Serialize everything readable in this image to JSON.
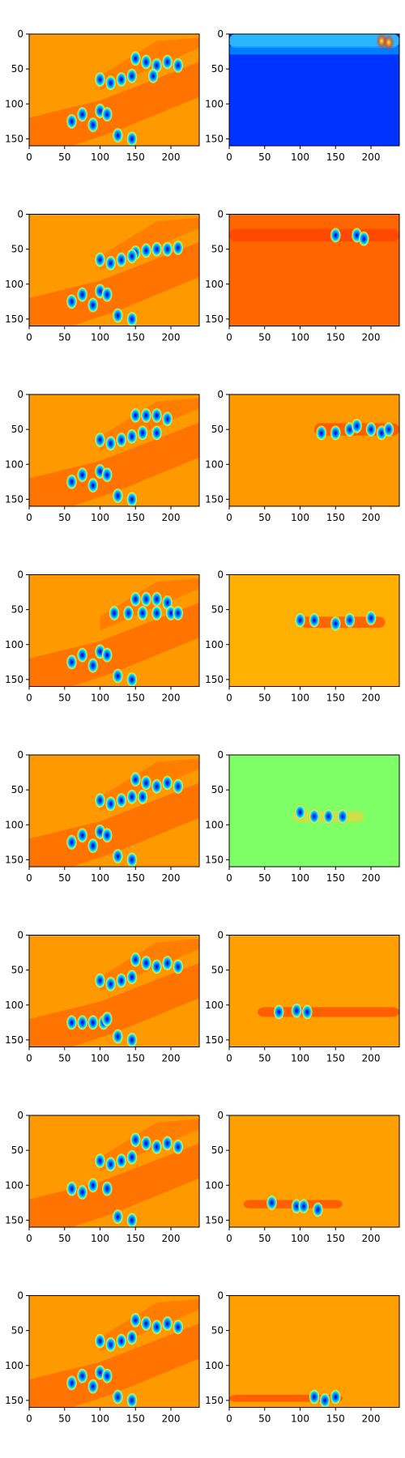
{
  "chart_data": {
    "type": "heatmap",
    "layout": {
      "rows": 8,
      "columns": 2
    },
    "colormap": "jet",
    "grid": false,
    "axes": {
      "xlim": [
        0,
        240
      ],
      "ylim": [
        160,
        0
      ],
      "xticks": [
        0,
        50,
        100,
        150,
        200
      ],
      "yticks": [
        0,
        50,
        100
      ],
      "xtick_labels": [
        "0",
        "50",
        "100",
        "150",
        "200"
      ],
      "ytick_labels": [
        "0",
        "50",
        "100",
        "150"
      ]
    },
    "left_panels": [
      {
        "row": 1,
        "background": "#ff9900",
        "blobs": [
          [
            150,
            35
          ],
          [
            165,
            40
          ],
          [
            180,
            45
          ],
          [
            195,
            40
          ],
          [
            210,
            45
          ],
          [
            175,
            60
          ],
          [
            145,
            60
          ],
          [
            130,
            65
          ],
          [
            115,
            70
          ],
          [
            100,
            65
          ],
          [
            60,
            125
          ],
          [
            75,
            115
          ],
          [
            90,
            130
          ],
          [
            100,
            110
          ],
          [
            110,
            115
          ],
          [
            125,
            145
          ],
          [
            145,
            150
          ]
        ]
      },
      {
        "row": 2,
        "background": "#ff9900",
        "blobs": [
          [
            150,
            55
          ],
          [
            165,
            52
          ],
          [
            180,
            50
          ],
          [
            195,
            50
          ],
          [
            210,
            48
          ],
          [
            145,
            60
          ],
          [
            130,
            65
          ],
          [
            115,
            70
          ],
          [
            100,
            65
          ],
          [
            60,
            125
          ],
          [
            75,
            115
          ],
          [
            90,
            130
          ],
          [
            100,
            110
          ],
          [
            110,
            115
          ],
          [
            125,
            145
          ],
          [
            145,
            150
          ]
        ]
      },
      {
        "row": 3,
        "background": "#ff9900",
        "blobs": [
          [
            150,
            30
          ],
          [
            165,
            30
          ],
          [
            180,
            30
          ],
          [
            195,
            35
          ],
          [
            145,
            60
          ],
          [
            130,
            65
          ],
          [
            115,
            70
          ],
          [
            100,
            65
          ],
          [
            160,
            55
          ],
          [
            180,
            55
          ],
          [
            60,
            125
          ],
          [
            75,
            115
          ],
          [
            90,
            130
          ],
          [
            100,
            110
          ],
          [
            110,
            115
          ],
          [
            125,
            145
          ],
          [
            145,
            150
          ]
        ]
      },
      {
        "row": 4,
        "background": "#ff9900",
        "blobs": [
          [
            150,
            35
          ],
          [
            165,
            35
          ],
          [
            180,
            35
          ],
          [
            195,
            40
          ],
          [
            120,
            55
          ],
          [
            140,
            55
          ],
          [
            160,
            55
          ],
          [
            180,
            55
          ],
          [
            200,
            55
          ],
          [
            210,
            55
          ],
          [
            60,
            125
          ],
          [
            75,
            115
          ],
          [
            90,
            130
          ],
          [
            100,
            110
          ],
          [
            110,
            115
          ],
          [
            125,
            145
          ],
          [
            145,
            150
          ]
        ]
      },
      {
        "row": 5,
        "background": "#ff9900",
        "blobs": [
          [
            150,
            35
          ],
          [
            165,
            40
          ],
          [
            180,
            45
          ],
          [
            195,
            40
          ],
          [
            210,
            45
          ],
          [
            145,
            60
          ],
          [
            130,
            65
          ],
          [
            115,
            70
          ],
          [
            100,
            65
          ],
          [
            160,
            60
          ],
          [
            60,
            125
          ],
          [
            75,
            115
          ],
          [
            90,
            130
          ],
          [
            100,
            110
          ],
          [
            110,
            115
          ],
          [
            125,
            145
          ],
          [
            145,
            150
          ]
        ]
      },
      {
        "row": 6,
        "background": "#ff9900",
        "blobs": [
          [
            150,
            35
          ],
          [
            165,
            40
          ],
          [
            180,
            45
          ],
          [
            195,
            40
          ],
          [
            210,
            45
          ],
          [
            145,
            60
          ],
          [
            130,
            65
          ],
          [
            115,
            70
          ],
          [
            100,
            65
          ],
          [
            60,
            125
          ],
          [
            75,
            125
          ],
          [
            90,
            125
          ],
          [
            105,
            125
          ],
          [
            110,
            120
          ],
          [
            125,
            145
          ],
          [
            145,
            150
          ]
        ]
      },
      {
        "row": 7,
        "background": "#ff9900",
        "blobs": [
          [
            150,
            35
          ],
          [
            165,
            40
          ],
          [
            180,
            45
          ],
          [
            195,
            40
          ],
          [
            210,
            45
          ],
          [
            145,
            60
          ],
          [
            130,
            65
          ],
          [
            115,
            70
          ],
          [
            100,
            65
          ],
          [
            60,
            105
          ],
          [
            75,
            110
          ],
          [
            90,
            100
          ],
          [
            110,
            105
          ],
          [
            125,
            145
          ],
          [
            145,
            150
          ]
        ]
      },
      {
        "row": 8,
        "background": "#ff9900",
        "blobs": [
          [
            150,
            35
          ],
          [
            165,
            40
          ],
          [
            180,
            45
          ],
          [
            195,
            40
          ],
          [
            210,
            45
          ],
          [
            145,
            60
          ],
          [
            130,
            65
          ],
          [
            115,
            70
          ],
          [
            100,
            65
          ],
          [
            60,
            125
          ],
          [
            75,
            115
          ],
          [
            90,
            130
          ],
          [
            100,
            110
          ],
          [
            110,
            115
          ],
          [
            125,
            145
          ],
          [
            145,
            150
          ]
        ]
      }
    ],
    "right_panels": [
      {
        "row": 1,
        "background": "#0033ff",
        "band": {
          "y": 10,
          "height": 20,
          "x0": 0,
          "x1": 240
        },
        "blobs": [
          [
            215,
            10
          ],
          [
            225,
            12
          ]
        ]
      },
      {
        "row": 2,
        "background": "#ff6600",
        "band": {
          "y": 30,
          "height": 18,
          "x0": 0,
          "x1": 240
        },
        "blobs": [
          [
            150,
            30
          ],
          [
            180,
            30
          ],
          [
            190,
            35
          ]
        ]
      },
      {
        "row": 3,
        "background": "#ff9900",
        "band": {
          "y": 50,
          "height": 18,
          "x0": 120,
          "x1": 240
        },
        "blobs": [
          [
            130,
            55
          ],
          [
            150,
            55
          ],
          [
            170,
            50
          ],
          [
            180,
            45
          ],
          [
            200,
            50
          ],
          [
            215,
            55
          ],
          [
            225,
            50
          ]
        ]
      },
      {
        "row": 4,
        "background": "#ffb000",
        "band": {
          "y": 68,
          "height": 16,
          "x0": 100,
          "x1": 220
        },
        "blobs": [
          [
            100,
            65
          ],
          [
            120,
            65
          ],
          [
            150,
            70
          ],
          [
            170,
            65
          ],
          [
            200,
            62
          ]
        ]
      },
      {
        "row": 5,
        "background": "#7fff66",
        "band": {
          "y": 88,
          "height": 16,
          "x0": 90,
          "x1": 190
        },
        "blobs": [
          [
            100,
            82
          ],
          [
            120,
            88
          ],
          [
            140,
            88
          ],
          [
            160,
            88
          ]
        ]
      },
      {
        "row": 6,
        "background": "#ffa000",
        "band": {
          "y": 110,
          "height": 14,
          "x0": 40,
          "x1": 240
        },
        "blobs": [
          [
            70,
            110
          ],
          [
            95,
            108
          ],
          [
            110,
            110
          ]
        ]
      },
      {
        "row": 7,
        "background": "#ffa000",
        "band": {
          "y": 127,
          "height": 12,
          "x0": 20,
          "x1": 160
        },
        "blobs": [
          [
            60,
            125
          ],
          [
            95,
            130
          ],
          [
            105,
            130
          ],
          [
            125,
            135
          ]
        ]
      },
      {
        "row": 8,
        "background": "#ffa000",
        "band": {
          "y": 147,
          "height": 10,
          "x0": 0,
          "x1": 160
        },
        "blobs": [
          [
            120,
            145
          ],
          [
            135,
            150
          ],
          [
            150,
            145
          ]
        ]
      }
    ]
  }
}
